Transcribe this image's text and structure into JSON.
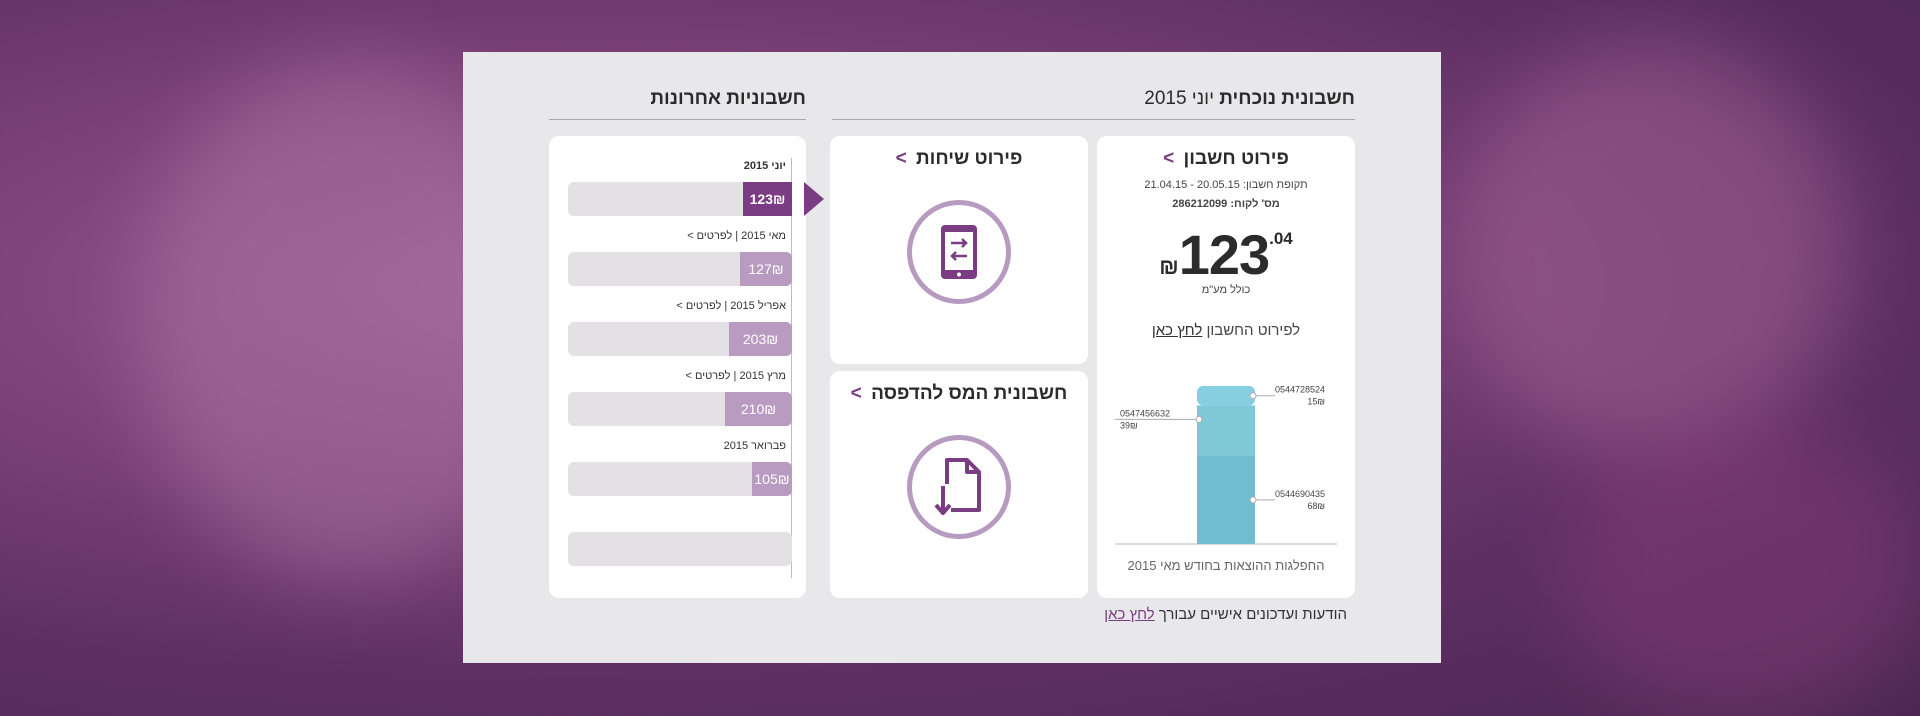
{
  "current_bill": {
    "title_bold": "חשבונית נוכחית",
    "title_month": "יוני 2015",
    "card_title": "פירוט חשבון",
    "arrow": ">",
    "period": "תקופת חשבון: 20.05.15 - 21.04.15",
    "customer_no": "מס' לקוח: 286212099",
    "amount_main": "123",
    "amount_cents": ".04",
    "currency": "₪",
    "vat_note": "כולל מע\"מ",
    "details_text": "לפירוט החשבון",
    "details_link": "לחץ כאן",
    "chart_caption": "החפלגות ההוצאות בחודש מאי 2015"
  },
  "calls_card": {
    "title": "פירוט שיחות",
    "arrow": ">",
    "icon": "phone-transfer-icon"
  },
  "tax_card": {
    "title": "חשבונית המס להדפסה",
    "arrow": ">",
    "icon": "document-download-icon"
  },
  "recent": {
    "title": "חשבוניות אחרונות",
    "items": [
      {
        "label": "יוני 2015",
        "value": "123₪",
        "fraction": 0.22,
        "current": true
      },
      {
        "label": "מאי 2015 | לפרטים >",
        "value": "127₪",
        "fraction": 0.23
      },
      {
        "label": "אפריל 2015 | לפרטים >",
        "value": "203₪",
        "fraction": 0.28
      },
      {
        "label": "מרץ 2015 | לפרטים >",
        "value": "210₪",
        "fraction": 0.3
      },
      {
        "label": "פברואר 2015",
        "value": "105₪",
        "fraction": 0.18
      }
    ]
  },
  "footer": {
    "text": "הודעות ועדכונים אישיים עבורך",
    "link": "לחץ כאן"
  },
  "chart_data": {
    "type": "bar",
    "stacked": true,
    "categories": [
      "מאי 2015"
    ],
    "series": [
      {
        "name": "0544728524",
        "values": [
          15
        ],
        "label": "15₪",
        "color": "#86cfe0"
      },
      {
        "name": "0547456632",
        "values": [
          39
        ],
        "label": "39₪",
        "color": "#7ec8d8"
      },
      {
        "name": "0544690435",
        "values": [
          68
        ],
        "label": "68₪",
        "color": "#6fbecf"
      }
    ]
  },
  "colors": {
    "accent": "#7a3c82",
    "accent_light": "#b99ac0",
    "panel": "#e8e8ea",
    "bar_blue": "#6fbecf"
  }
}
